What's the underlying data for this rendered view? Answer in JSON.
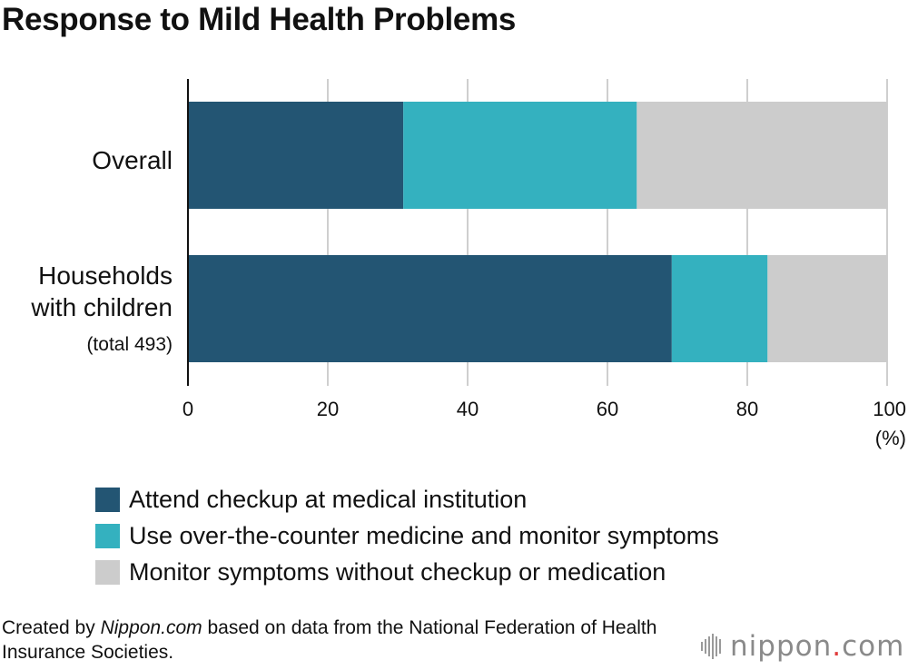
{
  "title": "Response to Mild Health Problems",
  "chart_data": {
    "type": "bar",
    "orientation": "horizontal",
    "stacked": true,
    "categories": [
      "Overall",
      "Households with children"
    ],
    "category_notes": [
      "",
      "(total 493)"
    ],
    "series": [
      {
        "name": "Attend checkup at medical institution",
        "color": "#235573",
        "values": [
          30.8,
          69.2
        ]
      },
      {
        "name": "Use over-the-counter medicine and monitor symptoms",
        "color": "#34b1bf",
        "values": [
          33.4,
          13.7
        ]
      },
      {
        "name": "Monitor symptoms without checkup or medication",
        "color": "#cccccc",
        "values": [
          35.8,
          17.1
        ]
      }
    ],
    "xlim": [
      0,
      100
    ],
    "xticks": [
      0,
      20,
      40,
      60,
      80,
      100
    ],
    "xlabel": "(%)",
    "grid": true,
    "legend_position": "bottom"
  },
  "source": {
    "prefix": "Created by ",
    "site": "Nippon.com",
    "suffix": " based on data from the National Federation of Health Insurance Societies."
  },
  "brand": {
    "name": "nippon",
    "dot": ".",
    "tld": "com"
  }
}
